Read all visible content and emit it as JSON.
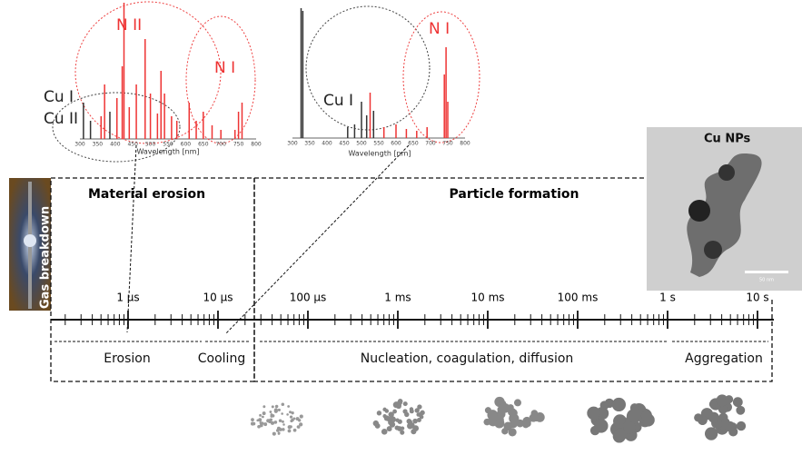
{
  "spectra": [
    {
      "labels": [
        "N II",
        "N I",
        "Cu I",
        "Cu II"
      ],
      "x_ticks": [
        300,
        350,
        400,
        450,
        500,
        550,
        600,
        650,
        700,
        750,
        800
      ],
      "x_label": "Wavelength [nm]"
    },
    {
      "labels": [
        "N I",
        "Cu I"
      ],
      "x_ticks": [
        300,
        350,
        400,
        450,
        500,
        550,
        600,
        650,
        700,
        750,
        800
      ],
      "x_label": "Wavelength [nm]"
    }
  ],
  "image": {
    "title": "Cu NPs",
    "scale_bar": "50 nm"
  },
  "gas_breakdown": "Gas breakdown",
  "stages": [
    "Material erosion",
    "Particle formation"
  ],
  "timeline": {
    "ticks": [
      "1 µs",
      "10 µs",
      "100 µs",
      "1 ms",
      "10 ms",
      "100 ms",
      "1 s",
      "10 s"
    ],
    "phases": [
      "Erosion",
      "Cooling",
      "Nucleation, coagulation, diffusion",
      "Aggregation"
    ]
  }
}
